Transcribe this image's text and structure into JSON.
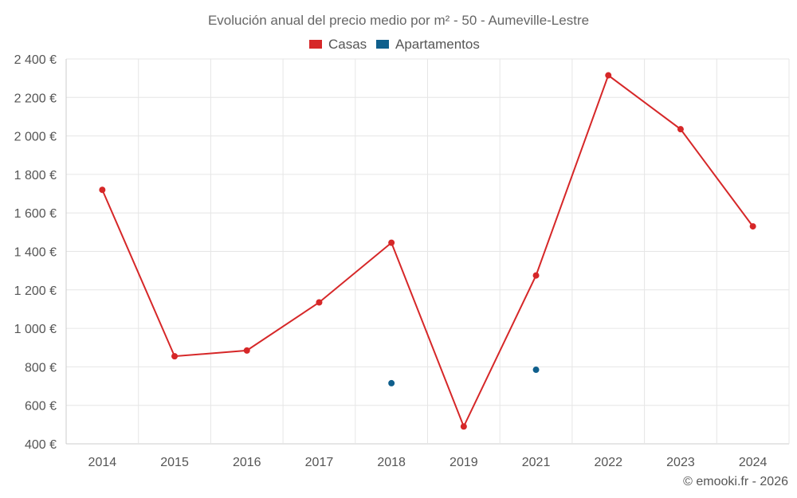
{
  "chart_data": {
    "type": "line",
    "title": "Evolución anual del precio medio por m² - 50 - Aumeville-Lestre",
    "categories": [
      "2014",
      "2015",
      "2016",
      "2017",
      "2018",
      "2019",
      "2021",
      "2022",
      "2023",
      "2024"
    ],
    "y_ticks": [
      "2 400 €",
      "2 200 €",
      "2 000 €",
      "1 800 €",
      "1 600 €",
      "1 400 €",
      "1 200 €",
      "1 000 €",
      "800 €",
      "600 €",
      "400 €"
    ],
    "ylim": [
      400,
      2400
    ],
    "series": [
      {
        "name": "Casas",
        "color": "#d62728",
        "values": [
          1720,
          855,
          885,
          1135,
          1445,
          490,
          1275,
          2315,
          2035,
          1530
        ]
      },
      {
        "name": "Apartamentos",
        "color": "#0f5f8c",
        "values": [
          null,
          null,
          null,
          null,
          715,
          null,
          785,
          null,
          null,
          null
        ]
      }
    ],
    "credit": "© emooki.fr - 2026"
  }
}
